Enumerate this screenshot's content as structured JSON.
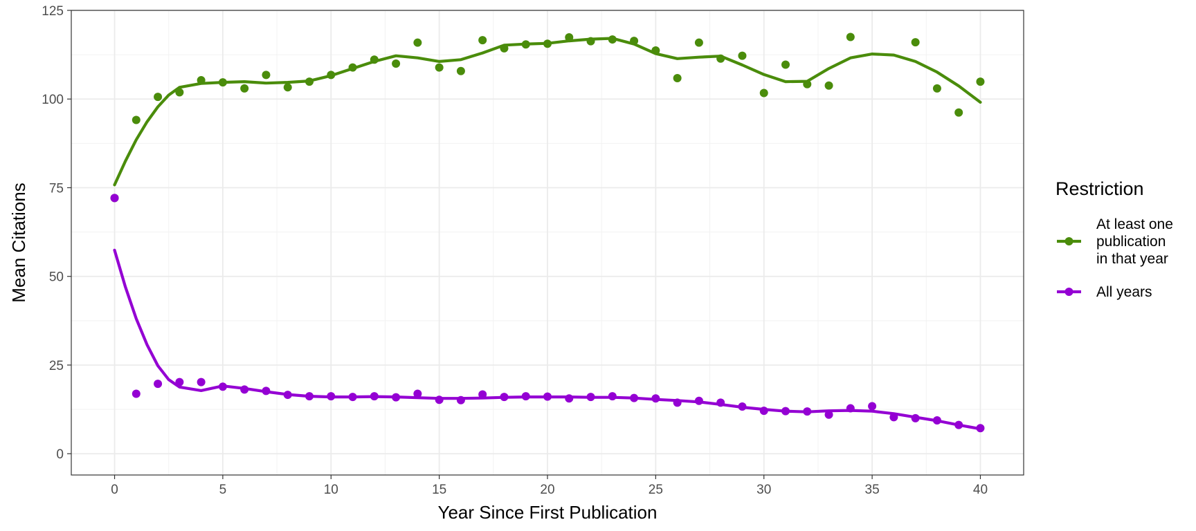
{
  "chart_data": {
    "type": "line",
    "xlabel": "Year Since First Publication",
    "ylabel": "Mean Citations",
    "xlim": [
      -2,
      42
    ],
    "ylim": [
      -6,
      125
    ],
    "x_ticks": [
      0,
      5,
      10,
      15,
      20,
      25,
      30,
      35,
      40
    ],
    "y_ticks": [
      0,
      25,
      50,
      75,
      100,
      125
    ],
    "grid": true,
    "legend": {
      "title": "Restriction",
      "position": "right"
    },
    "series": [
      {
        "name": "At least one publication in that year",
        "label_lines": [
          "At least one",
          "publication",
          "in that year"
        ],
        "color": "#4a8c0b",
        "points": [
          [
            0,
            72.1
          ],
          [
            1,
            94.1
          ],
          [
            2,
            100.6
          ],
          [
            3,
            101.9
          ],
          [
            4,
            105.3
          ],
          [
            5,
            104.7
          ],
          [
            6,
            103.0
          ],
          [
            7,
            106.8
          ],
          [
            8,
            103.3
          ],
          [
            9,
            104.9
          ],
          [
            10,
            106.8
          ],
          [
            11,
            108.9
          ],
          [
            12,
            111.1
          ],
          [
            13,
            110.0
          ],
          [
            14,
            115.9
          ],
          [
            15,
            108.9
          ],
          [
            16,
            107.9
          ],
          [
            17,
            116.6
          ],
          [
            18,
            114.3
          ],
          [
            19,
            115.4
          ],
          [
            20,
            115.6
          ],
          [
            21,
            117.4
          ],
          [
            22,
            116.3
          ],
          [
            23,
            116.8
          ],
          [
            24,
            116.4
          ],
          [
            25,
            113.7
          ],
          [
            26,
            105.9
          ],
          [
            27,
            115.9
          ],
          [
            28,
            111.4
          ],
          [
            29,
            112.2
          ],
          [
            30,
            101.7
          ],
          [
            31,
            109.7
          ],
          [
            32,
            104.2
          ],
          [
            33,
            103.8
          ],
          [
            34,
            117.5
          ],
          [
            35,
            null
          ],
          [
            36,
            null
          ],
          [
            37,
            116.0
          ],
          [
            38,
            103.0
          ],
          [
            39,
            96.2
          ],
          [
            40,
            104.9
          ]
        ],
        "smooth": [
          [
            0,
            75.8
          ],
          [
            0.5,
            82.5
          ],
          [
            1,
            88.5
          ],
          [
            1.5,
            93.6
          ],
          [
            2,
            97.8
          ],
          [
            2.5,
            101.1
          ],
          [
            3,
            103.3
          ],
          [
            4,
            104.4
          ],
          [
            5,
            104.7
          ],
          [
            6,
            104.9
          ],
          [
            7,
            104.5
          ],
          [
            8,
            104.7
          ],
          [
            9,
            105.1
          ],
          [
            10,
            106.6
          ],
          [
            11,
            108.6
          ],
          [
            12,
            110.6
          ],
          [
            13,
            112.2
          ],
          [
            14,
            111.6
          ],
          [
            15,
            110.6
          ],
          [
            16,
            111.1
          ],
          [
            17,
            113.0
          ],
          [
            18,
            115.2
          ],
          [
            19,
            115.5
          ],
          [
            20,
            115.7
          ],
          [
            21,
            116.4
          ],
          [
            22,
            116.9
          ],
          [
            23,
            117.1
          ],
          [
            24,
            115.5
          ],
          [
            25,
            112.8
          ],
          [
            26,
            111.4
          ],
          [
            27,
            111.8
          ],
          [
            28,
            112.1
          ],
          [
            29,
            109.6
          ],
          [
            30,
            106.9
          ],
          [
            31,
            104.9
          ],
          [
            32,
            105.0
          ],
          [
            33,
            108.6
          ],
          [
            34,
            111.6
          ],
          [
            35,
            112.7
          ],
          [
            36,
            112.4
          ],
          [
            37,
            110.6
          ],
          [
            38,
            107.6
          ],
          [
            39,
            103.7
          ],
          [
            40,
            99.1
          ]
        ]
      },
      {
        "name": "All years",
        "label_lines": [
          "All years"
        ],
        "color": "#9400d3",
        "points": [
          [
            0,
            72.1
          ],
          [
            1,
            16.9
          ],
          [
            2,
            19.7
          ],
          [
            3,
            20.2
          ],
          [
            4,
            20.2
          ],
          [
            5,
            18.9
          ],
          [
            6,
            18.1
          ],
          [
            7,
            17.7
          ],
          [
            8,
            16.6
          ],
          [
            9,
            16.2
          ],
          [
            10,
            16.2
          ],
          [
            11,
            16.0
          ],
          [
            12,
            16.2
          ],
          [
            13,
            15.9
          ],
          [
            14,
            16.9
          ],
          [
            15,
            15.2
          ],
          [
            16,
            15.1
          ],
          [
            17,
            16.7
          ],
          [
            18,
            16.0
          ],
          [
            19,
            16.2
          ],
          [
            20,
            16.1
          ],
          [
            21,
            15.6
          ],
          [
            22,
            16.0
          ],
          [
            23,
            16.2
          ],
          [
            24,
            15.7
          ],
          [
            25,
            15.6
          ],
          [
            26,
            14.4
          ],
          [
            27,
            14.9
          ],
          [
            28,
            14.4
          ],
          [
            29,
            13.3
          ],
          [
            30,
            12.1
          ],
          [
            31,
            12.0
          ],
          [
            32,
            11.9
          ],
          [
            33,
            11.0
          ],
          [
            34,
            12.8
          ],
          [
            35,
            13.4
          ],
          [
            36,
            10.3
          ],
          [
            37,
            10.0
          ],
          [
            38,
            9.4
          ],
          [
            39,
            8.1
          ],
          [
            40,
            7.2
          ]
        ],
        "smooth": [
          [
            0,
            57.4
          ],
          [
            0.5,
            47.0
          ],
          [
            1,
            38.1
          ],
          [
            1.5,
            30.7
          ],
          [
            2,
            24.8
          ],
          [
            2.5,
            20.9
          ],
          [
            3,
            18.8
          ],
          [
            4,
            17.8
          ],
          [
            5,
            19.1
          ],
          [
            6,
            18.4
          ],
          [
            7,
            17.5
          ],
          [
            8,
            16.7
          ],
          [
            9,
            16.2
          ],
          [
            10,
            16.0
          ],
          [
            11,
            16.0
          ],
          [
            12,
            16.1
          ],
          [
            13,
            16.0
          ],
          [
            14,
            15.8
          ],
          [
            15,
            15.6
          ],
          [
            16,
            15.6
          ],
          [
            17,
            15.7
          ],
          [
            18,
            15.9
          ],
          [
            19,
            16.0
          ],
          [
            20,
            16.0
          ],
          [
            21,
            16.0
          ],
          [
            22,
            15.9
          ],
          [
            23,
            15.9
          ],
          [
            24,
            15.7
          ],
          [
            25,
            15.3
          ],
          [
            26,
            15.0
          ],
          [
            27,
            14.6
          ],
          [
            28,
            13.9
          ],
          [
            29,
            13.1
          ],
          [
            30,
            12.5
          ],
          [
            31,
            12.0
          ],
          [
            32,
            11.8
          ],
          [
            33,
            12.1
          ],
          [
            34,
            12.2
          ],
          [
            35,
            12.0
          ],
          [
            36,
            11.3
          ],
          [
            37,
            10.3
          ],
          [
            38,
            9.3
          ],
          [
            39,
            8.1
          ],
          [
            40,
            7.0
          ]
        ]
      }
    ]
  }
}
